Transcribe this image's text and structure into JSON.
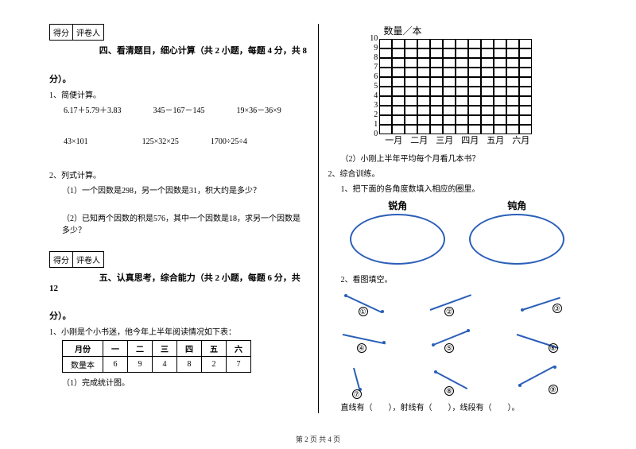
{
  "scoreBox": {
    "c1": "得分",
    "c2": "评卷人"
  },
  "section4": {
    "title": "四、看清题目，细心计算（共 2 小题，每题 4 分，共 8",
    "tail": "分）。",
    "q1": "1、简便计算。",
    "row1a": "6.17＋5.79＋3.83",
    "row1b": "345－167－145",
    "row1c": "19×36－36×9",
    "row2a": "43×101",
    "row2b": "125×32×25",
    "row2c": "1700÷25÷4",
    "q2": "2、列式计算。",
    "q2a": "（1）一个因数是298，另一个因数是31，积大约是多少？",
    "q2b": "（2）已知两个因数的积是576，其中一个因数是18，求另一个因数是多少？"
  },
  "section5": {
    "title": "五、认真思考，综合能力（共 2 小题，每题 6 分，共 12",
    "tail": "分）。",
    "q1": "1、小刚是个小书迷，他今年上半年阅读情况如下表：",
    "tbl_h0": "月份",
    "tbl_h1": "一",
    "tbl_h2": "二",
    "tbl_h3": "三",
    "tbl_h4": "四",
    "tbl_h5": "五",
    "tbl_h6": "六",
    "tbl_r0": "数量本",
    "tbl_r1": "6",
    "tbl_r2": "9",
    "tbl_r3": "4",
    "tbl_r4": "8",
    "tbl_r5": "2",
    "tbl_r6": "7",
    "q1a": "（1）完成统计图。"
  },
  "right": {
    "chart_title": "数量／本",
    "y": {
      "10": "10",
      "9": "9",
      "8": "8",
      "7": "7",
      "6": "6",
      "5": "5",
      "4": "4",
      "3": "3",
      "2": "2",
      "1": "1",
      "0": "0"
    },
    "x": {
      "1": "一月",
      "2": "二月",
      "3": "三月",
      "4": "四月",
      "5": "五月",
      "6": "六月"
    },
    "q1b": "（2）小刚上半年平均每个月看几本书？",
    "q2": "2、综合训练。",
    "q2a": "1、把下面的各角度数填入相应的圈里。",
    "acute": "锐角",
    "obtuse": "钝角",
    "q2b": "2、看图填空。",
    "n1": "①",
    "n2": "②",
    "n3": "③",
    "n4": "④",
    "n5": "⑤",
    "n6": "⑥",
    "n7": "⑦",
    "n8": "⑧",
    "n9": "⑨",
    "fill": "直线有（　　），射线有（　　），线段有（　　）。"
  },
  "footer": "第 2 页 共 4 页"
}
